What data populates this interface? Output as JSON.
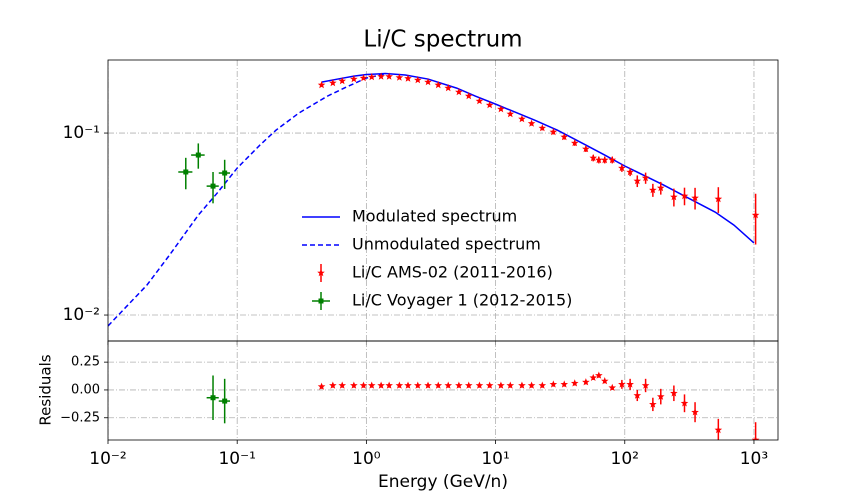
{
  "chart_data": [
    {
      "type": "errorbar",
      "title": "Li/C spectrum",
      "xscale": "log",
      "yscale": "log",
      "xlim": [
        0.01,
        1535
      ],
      "ylim": [
        0.0072,
        0.252
      ],
      "xticks": [
        0.01,
        0.1,
        1,
        10,
        100,
        1000
      ],
      "yticks": [
        {
          "value": 0.1,
          "label": "10⁻¹"
        },
        {
          "value": 0.01,
          "label": "10⁻²"
        }
      ],
      "grid": true,
      "legend": "lower center",
      "series": [
        {
          "name": "Modulated spectrum",
          "color": "#0000ff",
          "style": "solid",
          "x": [
            0.45,
            0.6,
            0.8,
            1,
            1.4,
            2,
            3,
            5,
            7,
            10,
            20,
            30,
            50,
            70,
            100,
            200,
            300,
            500,
            700,
            1000
          ],
          "values": [
            0.1905,
            0.198,
            0.2056,
            0.2096,
            0.2123,
            0.2083,
            0.198,
            0.1766,
            0.1595,
            0.1442,
            0.1178,
            0.1038,
            0.0859,
            0.0757,
            0.0659,
            0.0518,
            0.0445,
            0.0368,
            0.0312,
            0.0249
          ]
        },
        {
          "name": "Unmodulated spectrum",
          "color": "#0000ff",
          "style": "dashed",
          "x": [
            0.01,
            0.02,
            0.03,
            0.05,
            0.07,
            0.1,
            0.15,
            0.2,
            0.3,
            0.5,
            0.7,
            1,
            1.4
          ],
          "values": [
            0.00871,
            0.0146,
            0.0214,
            0.0354,
            0.0468,
            0.0642,
            0.0859,
            0.1038,
            0.1288,
            0.1596,
            0.179,
            0.2005,
            0.211
          ]
        },
        {
          "name": "Li/C AMS-02 (2011-2016)",
          "color": "#ff0000",
          "style": "errorbar",
          "marker": "star",
          "x": [
            0.45,
            0.55,
            0.65,
            0.8,
            0.95,
            1.1,
            1.3,
            1.5,
            1.8,
            2.1,
            2.5,
            3,
            3.6,
            4.3,
            5.2,
            6.2,
            7.5,
            9,
            11,
            13,
            16,
            19,
            23,
            28,
            34,
            41,
            50,
            57,
            63,
            70,
            80,
            95,
            110,
            125,
            145,
            165,
            190,
            240,
            290,
            350,
            530,
            1030
          ],
          "values": [
            0.1836,
            0.1883,
            0.1931,
            0.198,
            0.2005,
            0.2031,
            0.2044,
            0.2044,
            0.2018,
            0.1993,
            0.1955,
            0.1906,
            0.1836,
            0.1767,
            0.168,
            0.1597,
            0.1499,
            0.1425,
            0.1354,
            0.1272,
            0.1194,
            0.1128,
            0.1065,
            0.1013,
            0.0951,
            0.0881,
            0.0817,
            0.0729,
            0.0711,
            0.0711,
            0.0711,
            0.0642,
            0.061,
            0.0545,
            0.0566,
            0.0486,
            0.0499,
            0.0445,
            0.0451,
            0.044,
            0.0434,
            0.0354
          ],
          "yerr": [
            0.004,
            0.004,
            0.004,
            0.004,
            0.004,
            0.004,
            0.004,
            0.004,
            0.004,
            0.004,
            0.004,
            0.004,
            0.003,
            0.003,
            0.003,
            0.003,
            0.003,
            0.003,
            0.003,
            0.003,
            0.003,
            0.003,
            0.003,
            0.003,
            0.003,
            0.003,
            0.003,
            0.003,
            0.003,
            0.003,
            0.003,
            0.003,
            0.003,
            0.004,
            0.004,
            0.004,
            0.004,
            0.005,
            0.005,
            0.006,
            0.007,
            0.011
          ]
        },
        {
          "name": "Li/C Voyager 1 (2012-2015)",
          "color": "#008000",
          "style": "errorbar",
          "marker": "plus",
          "x": [
            0.04,
            0.05,
            0.065,
            0.08
          ],
          "values": [
            0.0611,
            0.0757,
            0.0511,
            0.0603
          ],
          "xerr": [
            0.005,
            0.006,
            0.007,
            0.008
          ],
          "yerr": [
            0.012,
            0.012,
            0.01,
            0.011
          ]
        }
      ]
    },
    {
      "type": "errorbar",
      "xlabel": "Energy (GeV/n)",
      "ylabel": "Residuals",
      "xscale": "log",
      "yscale": "linear",
      "xlim": [
        0.01,
        1535
      ],
      "ylim": [
        -0.45,
        0.44
      ],
      "xticks": [
        {
          "value": 0.01,
          "label": "10⁻²"
        },
        {
          "value": 0.1,
          "label": "10⁻¹"
        },
        {
          "value": 1,
          "label": "10⁰"
        },
        {
          "value": 10,
          "label": "10¹"
        },
        {
          "value": 100,
          "label": "10²"
        },
        {
          "value": 1000,
          "label": "10³"
        }
      ],
      "yticks": [
        0.25,
        {
          "value": 0,
          "label": "0.00"
        },
        {
          "value": -0.25,
          "label": "−0.25"
        }
      ],
      "grid": true,
      "series": [
        {
          "color": "#ff0000",
          "style": "errorbar",
          "marker": "star",
          "x": [
            0.45,
            0.55,
            0.65,
            0.8,
            0.95,
            1.1,
            1.3,
            1.5,
            1.8,
            2.1,
            2.5,
            3,
            3.6,
            4.3,
            5.2,
            6.2,
            7.5,
            9,
            11,
            13,
            16,
            19,
            23,
            28,
            34,
            41,
            50,
            57,
            63,
            70,
            80,
            95,
            110,
            125,
            145,
            165,
            190,
            240,
            290,
            350,
            530,
            1030
          ],
          "values": [
            0.03,
            0.04,
            0.04,
            0.04,
            0.04,
            0.04,
            0.04,
            0.04,
            0.04,
            0.04,
            0.04,
            0.04,
            0.04,
            0.04,
            0.04,
            0.04,
            0.04,
            0.04,
            0.04,
            0.04,
            0.04,
            0.04,
            0.04,
            0.05,
            0.05,
            0.06,
            0.07,
            0.11,
            0.13,
            0.08,
            0.02,
            0.05,
            0.05,
            -0.05,
            0.04,
            -0.13,
            -0.06,
            -0.03,
            -0.12,
            -0.2,
            -0.36,
            -0.45
          ],
          "yerr": [
            0.02,
            0.02,
            0.02,
            0.02,
            0.02,
            0.02,
            0.02,
            0.02,
            0.02,
            0.02,
            0.02,
            0.02,
            0.02,
            0.02,
            0.02,
            0.02,
            0.02,
            0.02,
            0.02,
            0.02,
            0.02,
            0.02,
            0.02,
            0.02,
            0.02,
            0.02,
            0.02,
            0.02,
            0.02,
            0.02,
            0.02,
            0.04,
            0.05,
            0.05,
            0.06,
            0.06,
            0.07,
            0.07,
            0.08,
            0.09,
            0.1,
            0.16
          ]
        },
        {
          "color": "#008000",
          "style": "errorbar",
          "marker": "plus",
          "x": [
            0.065,
            0.08
          ],
          "values": [
            -0.07,
            -0.1
          ],
          "xerr": [
            0.007,
            0.008
          ],
          "yerr": [
            0.2,
            0.2
          ]
        }
      ]
    }
  ]
}
